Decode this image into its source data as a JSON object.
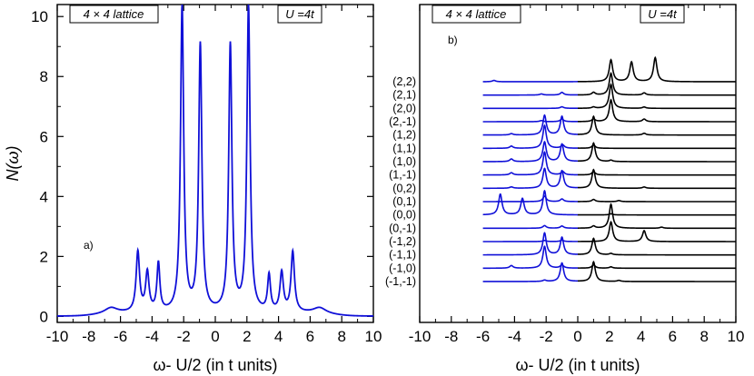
{
  "chart_data": [
    {
      "type": "line",
      "panel_label": "a)",
      "box_left": "4 × 4 lattice",
      "box_right": "U =4t",
      "xlabel": "ω- U/2 (in t units)",
      "ylabel": "N(ω)",
      "xlim": [
        -10,
        10
      ],
      "ylim": [
        -0.2,
        10.4
      ],
      "xticks": [
        "-10",
        "-8",
        "-6",
        "-4",
        "-2",
        "0",
        "2",
        "4",
        "6",
        "8",
        "10"
      ],
      "yticks": [
        "0",
        "2",
        "4",
        "6",
        "8",
        "10"
      ],
      "series_color": "#1010d8",
      "baseline": 0.1,
      "peaks": [
        {
          "x": -6.6,
          "h": 0.2,
          "w": 0.5
        },
        {
          "x": -4.9,
          "h": 2.0,
          "w": 0.13
        },
        {
          "x": -4.3,
          "h": 1.3,
          "w": 0.13
        },
        {
          "x": -3.6,
          "h": 1.6,
          "w": 0.11
        },
        {
          "x": -2.1,
          "h": 10.2,
          "w": 0.12
        },
        {
          "x": -0.95,
          "h": 8.9,
          "w": 0.12
        },
        {
          "x": 0.95,
          "h": 8.9,
          "w": 0.12
        },
        {
          "x": 2.1,
          "h": 10.2,
          "w": 0.12
        },
        {
          "x": 3.4,
          "h": 1.2,
          "w": 0.11
        },
        {
          "x": 4.2,
          "h": 1.3,
          "w": 0.13
        },
        {
          "x": 4.9,
          "h": 2.0,
          "w": 0.13
        },
        {
          "x": 6.6,
          "h": 0.2,
          "w": 0.5
        }
      ]
    },
    {
      "type": "line",
      "panel_label": "b)",
      "box_left": "4 × 4 lattice",
      "box_right": "U =4t",
      "xlabel": "ω- U/2 (in t units)",
      "xlim": [
        -10,
        10
      ],
      "xticks": [
        "-10",
        "-8",
        "-6",
        "-4",
        "-2",
        "0",
        "2",
        "4",
        "6",
        "8",
        "10"
      ],
      "offset_step": 0.42,
      "colors": {
        "below": "#1010d8",
        "above": "#000000"
      },
      "k_points": [
        {
          "label": "(2,2)",
          "peaks": [
            {
              "x": -5.3,
              "h": 0.06
            },
            {
              "x": 2.1,
              "h": 1.0
            },
            {
              "x": 3.4,
              "h": 0.9
            },
            {
              "x": 4.9,
              "h": 1.1
            }
          ]
        },
        {
          "label": "(2,1)",
          "peaks": [
            {
              "x": -2.3,
              "h": 0.05
            },
            {
              "x": -1.0,
              "h": 0.12
            },
            {
              "x": 1.0,
              "h": 0.12
            },
            {
              "x": 2.1,
              "h": 1.0
            },
            {
              "x": 4.2,
              "h": 0.1
            }
          ]
        },
        {
          "label": "(2,0)",
          "peaks": [
            {
              "x": -1.0,
              "h": 0.07
            },
            {
              "x": 1.0,
              "h": 0.06
            },
            {
              "x": 2.1,
              "h": 1.1
            },
            {
              "x": 4.2,
              "h": 0.06
            }
          ]
        },
        {
          "label": "(2,-1)",
          "peaks": [
            {
              "x": -2.3,
              "h": 0.05
            },
            {
              "x": -1.0,
              "h": 0.12
            },
            {
              "x": 1.0,
              "h": 0.12
            },
            {
              "x": 2.1,
              "h": 1.0
            },
            {
              "x": 4.2,
              "h": 0.12
            }
          ]
        },
        {
          "label": "(1,2)",
          "peaks": [
            {
              "x": -4.2,
              "h": 0.06
            },
            {
              "x": -2.1,
              "h": 0.9
            },
            {
              "x": -1.0,
              "h": 0.85
            },
            {
              "x": 1.0,
              "h": 0.85
            },
            {
              "x": 4.2,
              "h": 0.08
            }
          ]
        },
        {
          "label": "(1,1)",
          "peaks": [
            {
              "x": -4.2,
              "h": 0.1
            },
            {
              "x": -2.1,
              "h": 1.05
            },
            {
              "x": -0.95,
              "h": 0.15
            },
            {
              "x": 1.0,
              "h": 0.15
            }
          ]
        },
        {
          "label": "(1,0)",
          "peaks": [
            {
              "x": -4.2,
              "h": 0.12
            },
            {
              "x": -2.1,
              "h": 0.9
            },
            {
              "x": -1.0,
              "h": 0.8
            },
            {
              "x": 1.0,
              "h": 0.85
            },
            {
              "x": 2.1,
              "h": 0.06
            }
          ]
        },
        {
          "label": "(1,-1)",
          "peaks": [
            {
              "x": -4.2,
              "h": 0.1
            },
            {
              "x": -2.1,
              "h": 1.05
            },
            {
              "x": -0.95,
              "h": 0.15
            },
            {
              "x": 1.0,
              "h": 0.15
            }
          ]
        },
        {
          "label": "(0,2)",
          "peaks": [
            {
              "x": -4.2,
              "h": 0.06
            },
            {
              "x": -2.1,
              "h": 0.9
            },
            {
              "x": -1.0,
              "h": 0.8
            },
            {
              "x": 1.0,
              "h": 0.85
            },
            {
              "x": 4.2,
              "h": 0.06
            }
          ]
        },
        {
          "label": "(0,1)",
          "peaks": [
            {
              "x": -2.1,
              "h": 0.25
            },
            {
              "x": -1.0,
              "h": 0.12
            },
            {
              "x": 1.0,
              "h": 0.1
            },
            {
              "x": 2.6,
              "h": 0.05
            }
          ]
        },
        {
          "label": "(0,0)",
          "peaks": [
            {
              "x": -4.9,
              "h": 0.95
            },
            {
              "x": -3.5,
              "h": 0.75
            },
            {
              "x": -2.1,
              "h": 1.1
            },
            {
              "x": 2.1,
              "h": 0.05
            }
          ]
        },
        {
          "label": "(0,-1)",
          "peaks": [
            {
              "x": -2.1,
              "h": 0.12
            },
            {
              "x": -1.0,
              "h": 0.1
            },
            {
              "x": 1.0,
              "h": 0.1
            },
            {
              "x": 2.1,
              "h": 1.1
            },
            {
              "x": 5.3,
              "h": 0.05
            }
          ]
        },
        {
          "label": "(-1,2)",
          "peaks": [
            {
              "x": -2.1,
              "h": 0.05
            },
            {
              "x": -1.0,
              "h": 0.06
            },
            {
              "x": 2.1,
              "h": 0.9
            },
            {
              "x": 4.2,
              "h": 0.5
            }
          ]
        },
        {
          "label": "(-1,1)",
          "peaks": [
            {
              "x": -2.1,
              "h": 1.0
            },
            {
              "x": -1.0,
              "h": 0.8
            },
            {
              "x": 1.0,
              "h": 0.75
            },
            {
              "x": 2.1,
              "h": 0.06
            }
          ]
        },
        {
          "label": "(-1,0)",
          "peaks": [
            {
              "x": -4.2,
              "h": 0.12
            },
            {
              "x": -2.1,
              "h": 1.0
            },
            {
              "x": -1.0,
              "h": 0.15
            },
            {
              "x": 1.0,
              "h": 0.15
            },
            {
              "x": 2.1,
              "h": 0.06
            }
          ]
        },
        {
          "label": "(-1,-1)",
          "peaks": [
            {
              "x": -2.1,
              "h": 0.06
            },
            {
              "x": -1.0,
              "h": 0.85
            },
            {
              "x": 1.0,
              "h": 0.9
            },
            {
              "x": 2.6,
              "h": 0.05
            }
          ]
        }
      ]
    }
  ]
}
